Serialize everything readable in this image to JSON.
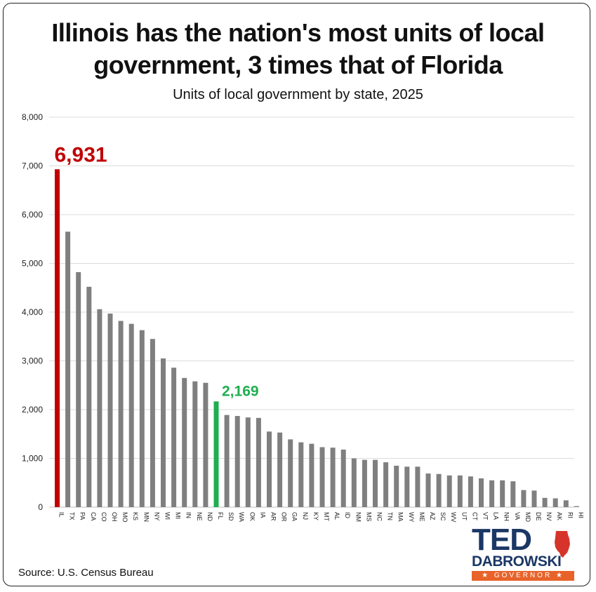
{
  "header": {
    "title_line1": "Illinois has the nation's most units of local",
    "title_line2": "government, 3 times that of Florida",
    "subtitle": "Units of local government by state, 2025"
  },
  "footer": {
    "source": "Source: U.S. Census Bureau"
  },
  "logo": {
    "name_top": "TED",
    "name_bottom": "DABROWSKI",
    "tagline": "★ GOVERNOR ★",
    "colors": {
      "navy": "#1b3765",
      "orange": "#e8632a",
      "red": "#d6342a"
    }
  },
  "chart_data": {
    "type": "bar",
    "title": "Illinois has the nation's most units of local government, 3 times that of Florida",
    "subtitle": "Units of local government by state, 2025",
    "xlabel": "",
    "ylabel": "",
    "ylim": [
      0,
      8000
    ],
    "yticks": [
      0,
      1000,
      2000,
      3000,
      4000,
      5000,
      6000,
      7000,
      8000
    ],
    "ytick_labels": [
      "0",
      "1,000",
      "2,000",
      "3,000",
      "4,000",
      "5,000",
      "6,000",
      "7,000",
      "8,000"
    ],
    "grid": true,
    "legend": "none",
    "categories": [
      "IL",
      "TX",
      "PA",
      "CA",
      "CO",
      "OH",
      "MO",
      "KS",
      "MN",
      "NY",
      "WI",
      "MI",
      "IN",
      "NE",
      "ND",
      "FL",
      "SD",
      "WA",
      "OK",
      "IA",
      "AR",
      "OR",
      "GA",
      "NJ",
      "KY",
      "MT",
      "AL",
      "ID",
      "NM",
      "MS",
      "NC",
      "TN",
      "MA",
      "WY",
      "ME",
      "AZ",
      "SC",
      "WV",
      "UT",
      "CT",
      "VT",
      "LA",
      "NH",
      "VA",
      "MD",
      "DE",
      "NV",
      "AK",
      "RI",
      "HI"
    ],
    "values": [
      6931,
      5650,
      4820,
      4520,
      4060,
      3970,
      3820,
      3760,
      3630,
      3450,
      3050,
      2860,
      2650,
      2580,
      2550,
      2169,
      1890,
      1870,
      1840,
      1830,
      1550,
      1530,
      1390,
      1330,
      1300,
      1230,
      1220,
      1180,
      1000,
      970,
      970,
      920,
      850,
      830,
      830,
      690,
      680,
      650,
      650,
      630,
      590,
      550,
      550,
      530,
      350,
      340,
      190,
      180,
      140,
      20
    ],
    "colors": {
      "default": "#7f7f7f",
      "highlight_IL": "#c00000",
      "highlight_FL": "#1fae50"
    },
    "annotations": [
      {
        "category": "IL",
        "text": "6,931",
        "color": "#c00000"
      },
      {
        "category": "FL",
        "text": "2,169",
        "color": "#1fae50"
      }
    ]
  }
}
